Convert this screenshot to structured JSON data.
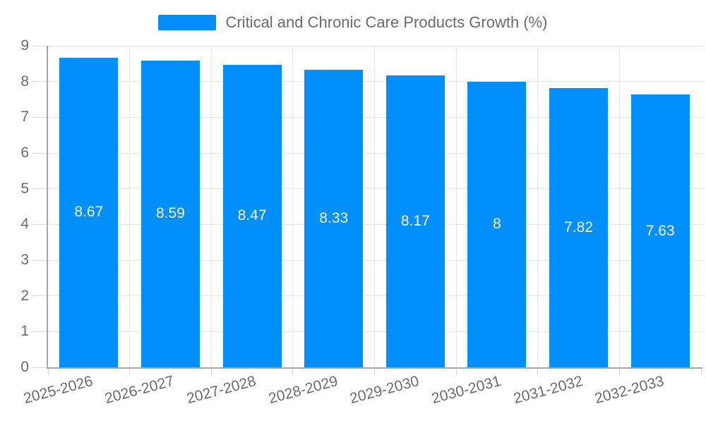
{
  "chart_data": {
    "type": "bar",
    "title": "Critical and Chronic Care Products Growth (%)",
    "legend": [
      "Critical and Chronic Care Products Growth (%)"
    ],
    "legend_position": "top",
    "categories": [
      "2025-2026",
      "2026-2027",
      "2027-2028",
      "2028-2029",
      "2029-2030",
      "2030-2031",
      "2031-2032",
      "2032-2033"
    ],
    "values": [
      8.67,
      8.59,
      8.47,
      8.33,
      8.17,
      8,
      7.82,
      7.63
    ],
    "bar_labels": [
      "8.67",
      "8.59",
      "8.47",
      "8.33",
      "8.17",
      "8",
      "7.82",
      "7.63"
    ],
    "xlabel": "",
    "ylabel": "",
    "ylim": [
      0,
      9
    ],
    "yticks": [
      0,
      1,
      2,
      3,
      4,
      5,
      6,
      7,
      8,
      9
    ],
    "grid": true,
    "colors": {
      "bar": "#008FFB",
      "grid": "#e7e7e7",
      "tick": "#dcdcdc",
      "axis": "#a6a6a6",
      "label": "#6b6b6b",
      "bar_label": "#ffffff",
      "background": "#ffffff"
    },
    "x_label_rotation": -15
  }
}
